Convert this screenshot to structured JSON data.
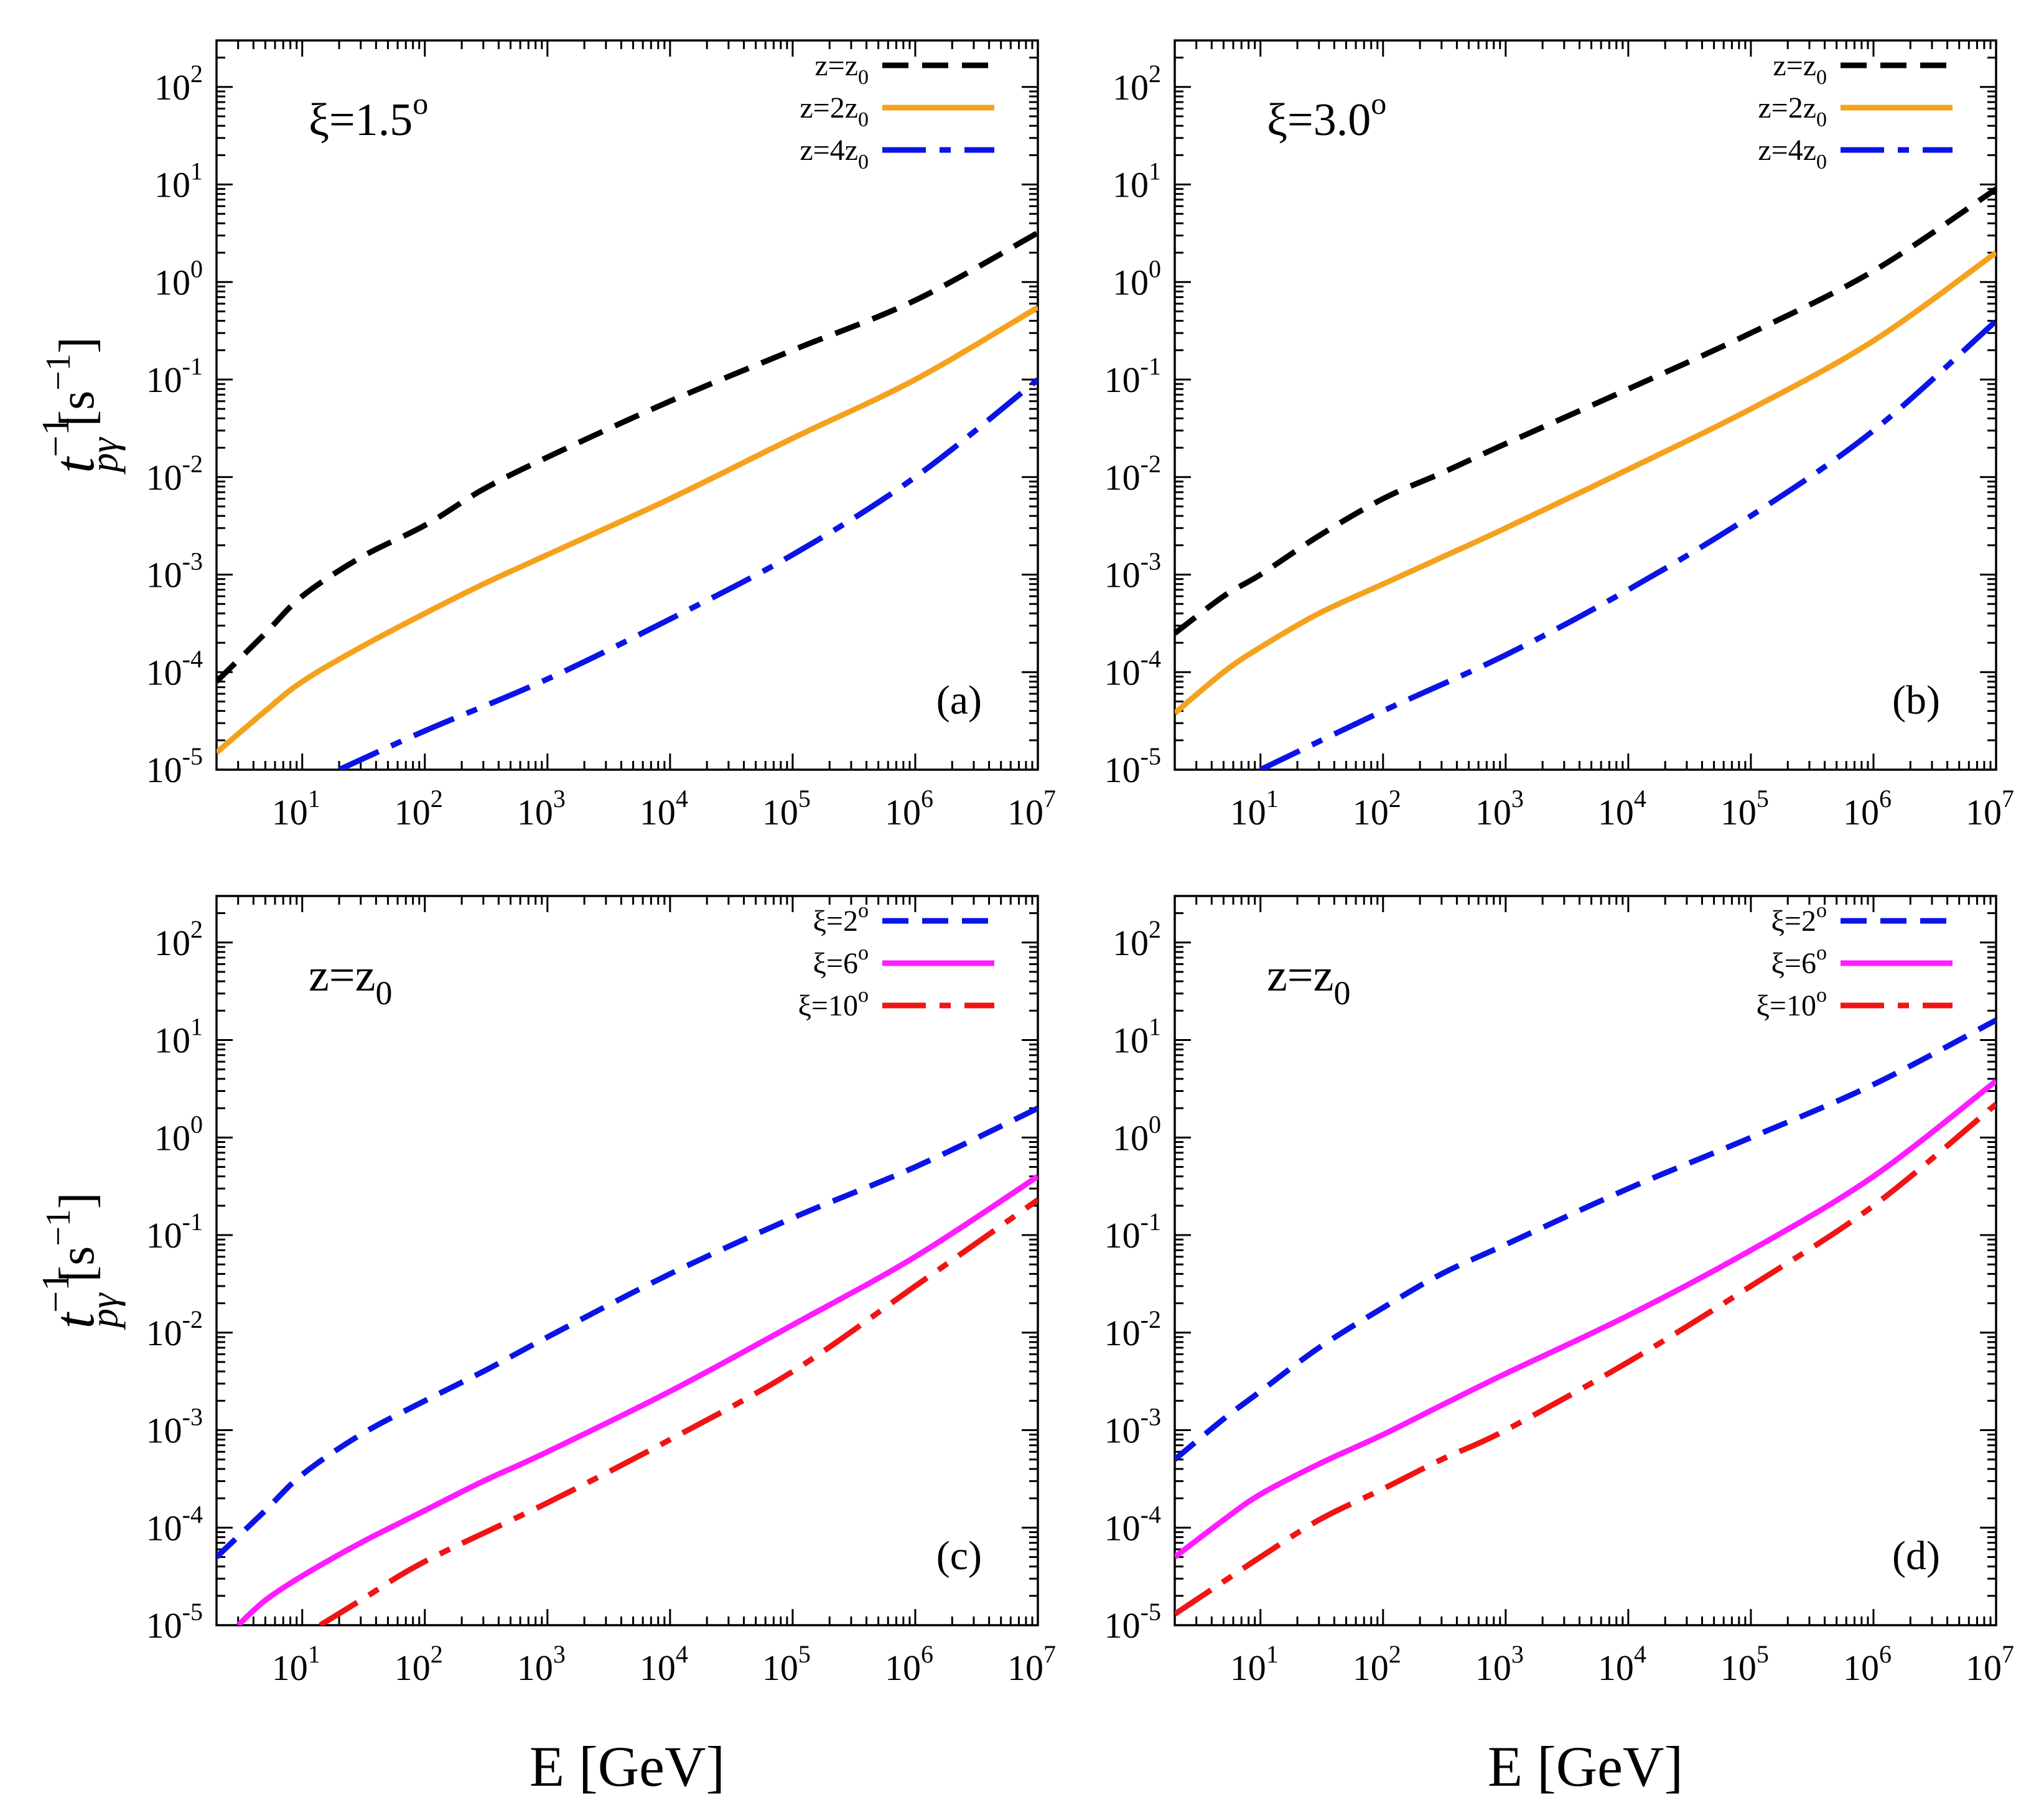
{
  "figure": {
    "xlabel": "E [GeV]",
    "ylabel": {
      "main": "t",
      "superscript": "−1",
      "subscript": "pγ",
      "unit": "[s",
      "unit_sup": "−1",
      "unit_close": "]"
    }
  },
  "colors": {
    "black": "#000000",
    "orange": "#f4a21e",
    "blue": "#0a14e6",
    "magenta": "#ff1cff",
    "red": "#f01414"
  },
  "chart_data": [
    {
      "type": "line",
      "panel": "(a)",
      "annotation": {
        "text": "ξ=1.5",
        "sup": "o"
      },
      "xscale": "log",
      "yscale": "log",
      "xlim": [
        2,
        10000000
      ],
      "ylim": [
        1e-05,
        300
      ],
      "xlabel": "E [GeV]",
      "ylabel": "t_pγ^-1 [s^-1]",
      "x_ticks": [
        {
          "base": "10",
          "exp": "1"
        },
        {
          "base": "10",
          "exp": "2"
        },
        {
          "base": "10",
          "exp": "3"
        },
        {
          "base": "10",
          "exp": "4"
        },
        {
          "base": "10",
          "exp": "5"
        },
        {
          "base": "10",
          "exp": "6"
        },
        {
          "base": "10",
          "exp": "7"
        }
      ],
      "y_ticks": [
        {
          "base": "10",
          "exp": "-5"
        },
        {
          "base": "10",
          "exp": "-4"
        },
        {
          "base": "10",
          "exp": "-3"
        },
        {
          "base": "10",
          "exp": "-2"
        },
        {
          "base": "10",
          "exp": "-1"
        },
        {
          "base": "10",
          "exp": "0"
        },
        {
          "base": "10",
          "exp": "1"
        },
        {
          "base": "10",
          "exp": "2"
        }
      ],
      "legend_position": "top-right",
      "series": [
        {
          "name": "z=z0",
          "label": "z=z",
          "sub": "0",
          "color": "#000000",
          "style": "dashed",
          "x": [
            2,
            5,
            10,
            30,
            100,
            300,
            1000,
            10000,
            100000,
            1000000,
            10000000
          ],
          "y": [
            8e-05,
            0.00025,
            0.0006,
            0.0015,
            0.0032,
            0.0075,
            0.016,
            0.06,
            0.2,
            0.65,
            3.2
          ]
        },
        {
          "name": "z=2z0",
          "label": "z=2z",
          "sub": "0",
          "color": "#f4a21e",
          "style": "solid",
          "x": [
            2,
            5,
            10,
            30,
            100,
            300,
            1000,
            10000,
            100000,
            1000000,
            10000000
          ],
          "y": [
            1.5e-05,
            4e-05,
            8e-05,
            0.00018,
            0.0004,
            0.0008,
            0.0016,
            0.006,
            0.025,
            0.1,
            0.55
          ]
        },
        {
          "name": "z=4z0",
          "label": "z=4z",
          "sub": "0",
          "color": "#0a14e6",
          "style": "dashdot",
          "x": [
            20,
            100,
            1000,
            10000,
            100000,
            1000000,
            10000000
          ],
          "y": [
            1e-05,
            2.5e-05,
            8.5e-05,
            0.00035,
            0.0016,
            0.01,
            0.1
          ]
        }
      ]
    },
    {
      "type": "line",
      "panel": "(b)",
      "annotation": {
        "text": "ξ=3.0",
        "sup": "o"
      },
      "xscale": "log",
      "yscale": "log",
      "xlim": [
        2,
        10000000
      ],
      "ylim": [
        1e-05,
        300
      ],
      "xlabel": "E [GeV]",
      "ylabel": "t_pγ^-1 [s^-1]",
      "x_ticks": [
        {
          "base": "10",
          "exp": "1"
        },
        {
          "base": "10",
          "exp": "2"
        },
        {
          "base": "10",
          "exp": "3"
        },
        {
          "base": "10",
          "exp": "4"
        },
        {
          "base": "10",
          "exp": "5"
        },
        {
          "base": "10",
          "exp": "6"
        },
        {
          "base": "10",
          "exp": "7"
        }
      ],
      "y_ticks": [
        {
          "base": "10",
          "exp": "-5"
        },
        {
          "base": "10",
          "exp": "-4"
        },
        {
          "base": "10",
          "exp": "-3"
        },
        {
          "base": "10",
          "exp": "-2"
        },
        {
          "base": "10",
          "exp": "-1"
        },
        {
          "base": "10",
          "exp": "0"
        },
        {
          "base": "10",
          "exp": "1"
        },
        {
          "base": "10",
          "exp": "2"
        }
      ],
      "legend_position": "top-right",
      "series": [
        {
          "name": "z=z0",
          "label": "z=z",
          "sub": "0",
          "color": "#000000",
          "style": "dashed",
          "x": [
            2,
            5,
            10,
            30,
            100,
            300,
            1000,
            10000,
            100000,
            1000000,
            10000000
          ],
          "y": [
            0.00025,
            0.0006,
            0.001,
            0.0025,
            0.006,
            0.011,
            0.022,
            0.08,
            0.3,
            1.3,
            9
          ]
        },
        {
          "name": "z=2z0",
          "label": "z=2z",
          "sub": "0",
          "color": "#f4a21e",
          "style": "solid",
          "x": [
            2,
            5,
            10,
            30,
            100,
            300,
            1000,
            10000,
            100000,
            1000000,
            10000000
          ],
          "y": [
            3.8e-05,
            0.0001,
            0.00018,
            0.0004,
            0.0008,
            0.0015,
            0.003,
            0.012,
            0.05,
            0.25,
            2
          ]
        },
        {
          "name": "z=4z0",
          "label": "z=4z",
          "sub": "0",
          "color": "#0a14e6",
          "style": "dashdot",
          "x": [
            10,
            100,
            1000,
            10000,
            100000,
            1000000,
            10000000
          ],
          "y": [
            1e-05,
            4e-05,
            0.00015,
            0.0007,
            0.004,
            0.03,
            0.4
          ]
        }
      ]
    },
    {
      "type": "line",
      "panel": "(c)",
      "annotation": {
        "text": "z=z",
        "sub": "0"
      },
      "xscale": "log",
      "yscale": "log",
      "xlim": [
        2,
        10000000
      ],
      "ylim": [
        1e-05,
        300
      ],
      "xlabel": "E [GeV]",
      "ylabel": "t_pγ^-1 [s^-1]",
      "x_ticks": [
        {
          "base": "10",
          "exp": "1"
        },
        {
          "base": "10",
          "exp": "2"
        },
        {
          "base": "10",
          "exp": "3"
        },
        {
          "base": "10",
          "exp": "4"
        },
        {
          "base": "10",
          "exp": "5"
        },
        {
          "base": "10",
          "exp": "6"
        },
        {
          "base": "10",
          "exp": "7"
        }
      ],
      "y_ticks": [
        {
          "base": "10",
          "exp": "-5"
        },
        {
          "base": "10",
          "exp": "-4"
        },
        {
          "base": "10",
          "exp": "-3"
        },
        {
          "base": "10",
          "exp": "-2"
        },
        {
          "base": "10",
          "exp": "-1"
        },
        {
          "base": "10",
          "exp": "0"
        },
        {
          "base": "10",
          "exp": "1"
        },
        {
          "base": "10",
          "exp": "2"
        }
      ],
      "legend_position": "top-right",
      "series": [
        {
          "name": "ξ=2°",
          "label": "ξ=2",
          "sup": "o",
          "color": "#0a14e6",
          "style": "dashed",
          "x": [
            2,
            5,
            10,
            30,
            100,
            300,
            1000,
            10000,
            100000,
            1000000,
            10000000
          ],
          "y": [
            5e-05,
            0.00015,
            0.00035,
            0.0009,
            0.002,
            0.004,
            0.009,
            0.04,
            0.15,
            0.5,
            2
          ]
        },
        {
          "name": "ξ=6°",
          "label": "ξ=6",
          "sup": "o",
          "color": "#ff1cff",
          "style": "solid",
          "x": [
            3,
            5,
            10,
            30,
            100,
            300,
            1000,
            10000,
            100000,
            1000000,
            10000000
          ],
          "y": [
            1e-05,
            1.8e-05,
            3.2e-05,
            7e-05,
            0.00015,
            0.0003,
            0.0006,
            0.0025,
            0.012,
            0.06,
            0.4
          ]
        },
        {
          "name": "ξ=10°",
          "label": "ξ=10",
          "sup": "o",
          "color": "#f01414",
          "style": "dashdot",
          "x": [
            14,
            30,
            100,
            1000,
            10000,
            100000,
            1000000,
            10000000
          ],
          "y": [
            1e-05,
            1.8e-05,
            4.5e-05,
            0.00018,
            0.0008,
            0.004,
            0.03,
            0.23
          ]
        }
      ]
    },
    {
      "type": "line",
      "panel": "(d)",
      "annotation": {
        "text": "z=z",
        "sub": "0"
      },
      "xscale": "log",
      "yscale": "log",
      "xlim": [
        2,
        10000000
      ],
      "ylim": [
        1e-05,
        300
      ],
      "xlabel": "E [GeV]",
      "ylabel": "t_pγ^-1 [s^-1]",
      "x_ticks": [
        {
          "base": "10",
          "exp": "1"
        },
        {
          "base": "10",
          "exp": "2"
        },
        {
          "base": "10",
          "exp": "3"
        },
        {
          "base": "10",
          "exp": "4"
        },
        {
          "base": "10",
          "exp": "5"
        },
        {
          "base": "10",
          "exp": "6"
        },
        {
          "base": "10",
          "exp": "7"
        }
      ],
      "y_ticks": [
        {
          "base": "10",
          "exp": "-5"
        },
        {
          "base": "10",
          "exp": "-4"
        },
        {
          "base": "10",
          "exp": "-3"
        },
        {
          "base": "10",
          "exp": "-2"
        },
        {
          "base": "10",
          "exp": "-1"
        },
        {
          "base": "10",
          "exp": "0"
        },
        {
          "base": "10",
          "exp": "1"
        },
        {
          "base": "10",
          "exp": "2"
        }
      ],
      "legend_position": "top-right",
      "series": [
        {
          "name": "ξ=2°",
          "label": "ξ=2",
          "sup": "o",
          "color": "#0a14e6",
          "style": "dashed",
          "x": [
            2,
            5,
            10,
            30,
            100,
            300,
            1000,
            10000,
            100000,
            1000000,
            10000000
          ],
          "y": [
            0.0005,
            0.0013,
            0.0025,
            0.007,
            0.018,
            0.04,
            0.08,
            0.3,
            1,
            3.5,
            16
          ]
        },
        {
          "name": "ξ=6°",
          "label": "ξ=6",
          "sup": "o",
          "color": "#ff1cff",
          "style": "solid",
          "x": [
            2,
            5,
            10,
            30,
            100,
            300,
            1000,
            10000,
            100000,
            1000000,
            10000000
          ],
          "y": [
            5e-05,
            0.00012,
            0.00022,
            0.00045,
            0.0009,
            0.0018,
            0.0038,
            0.015,
            0.07,
            0.4,
            3.8
          ]
        },
        {
          "name": "ξ=10°",
          "label": "ξ=10",
          "sup": "o",
          "color": "#f01414",
          "style": "dashdot",
          "x": [
            2,
            5,
            10,
            30,
            100,
            300,
            1000,
            10000,
            100000,
            1000000,
            10000000
          ],
          "y": [
            1.3e-05,
            2.8e-05,
            5e-05,
            0.00012,
            0.00025,
            0.0005,
            0.001,
            0.005,
            0.03,
            0.2,
            2.2
          ]
        }
      ]
    }
  ]
}
